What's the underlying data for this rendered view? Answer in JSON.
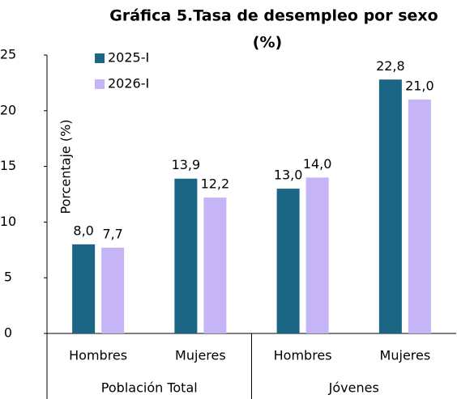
{
  "chart_data": {
    "type": "bar",
    "title": [
      "Gráfica 5.Tasa de desempleo por sexo",
      "(%)"
    ],
    "ylabel": "Porcentaje (%)",
    "categories": [
      "Hombres",
      "Mujeres",
      "Hombres",
      "Mujeres"
    ],
    "group_labels": [
      "Población Total",
      "Jóvenes"
    ],
    "series": [
      {
        "name": "2025-I",
        "color": "#1b6585",
        "values": [
          8.0,
          13.9,
          13.0,
          22.8
        ],
        "value_labels": [
          "8,0",
          "13,9",
          "13,0",
          "22,8"
        ]
      },
      {
        "name": "2026-I",
        "color": "#c6b5f6",
        "values": [
          7.7,
          12.2,
          14.0,
          21.0
        ],
        "value_labels": [
          "7,7",
          "12,2",
          "14,0",
          "21,0"
        ]
      }
    ],
    "ylim": [
      0,
      25
    ],
    "yticks": [
      0,
      5,
      10,
      15,
      20,
      25
    ],
    "legend": "upper left"
  }
}
